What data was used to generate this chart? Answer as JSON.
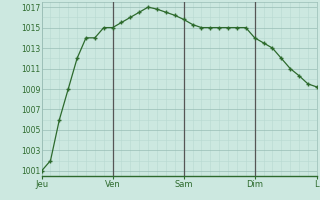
{
  "x_values": [
    0,
    0.5,
    1,
    1.5,
    2,
    2.5,
    3,
    3.5,
    4,
    4.5,
    5,
    5.5,
    6,
    6.5,
    7,
    7.5,
    8,
    8.5,
    9,
    9.5,
    10,
    10.5,
    11,
    11.5,
    12,
    12.5,
    13,
    13.5,
    14,
    14.5,
    15,
    15.5
  ],
  "y_values": [
    1001,
    1002,
    1006,
    1009,
    1012,
    1014,
    1014,
    1015,
    1015,
    1015.5,
    1016,
    1016.5,
    1017,
    1016.8,
    1016.5,
    1016.2,
    1015.8,
    1015.3,
    1015,
    1015,
    1015,
    1015,
    1015,
    1015,
    1014,
    1013.5,
    1013,
    1012,
    1011,
    1010.3,
    1009.5,
    1009.2
  ],
  "day_labels": [
    "Jeu",
    "Ven",
    "Sam",
    "Dim",
    "L"
  ],
  "day_positions": [
    0,
    4,
    8,
    12,
    15.5
  ],
  "vline_positions": [
    4,
    8,
    12
  ],
  "yticks": [
    1001,
    1003,
    1005,
    1007,
    1009,
    1011,
    1013,
    1015,
    1017
  ],
  "ylim": [
    1000.5,
    1017.5
  ],
  "xlim": [
    0,
    15.5
  ],
  "line_color": "#2d6a2d",
  "marker_color": "#2d6a2d",
  "bg_color": "#cce8e0",
  "grid_color_major": "#99bdb5",
  "grid_color_minor": "#b8d8d0",
  "vline_color": "#555555",
  "tick_color": "#2d6a2d",
  "label_fontsize": 6.0,
  "ytick_fontsize": 5.5
}
